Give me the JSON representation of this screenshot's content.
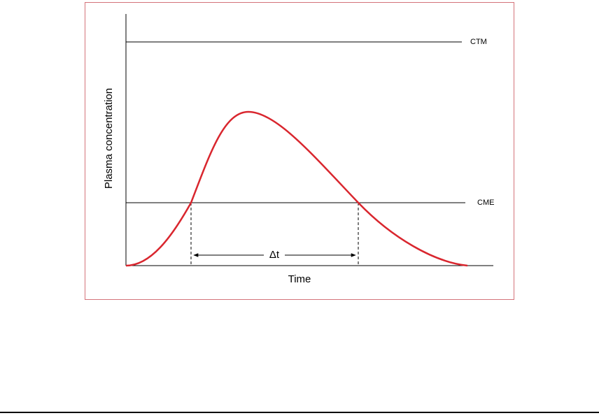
{
  "diagram": {
    "y_axis_label": "Plasma concentration",
    "x_axis_label": "Time",
    "upper_line_label": "CTM",
    "lower_line_label": "CME",
    "interval_label": "Δt"
  }
}
